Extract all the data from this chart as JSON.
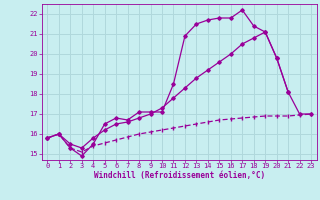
{
  "bg_color": "#c8eef0",
  "grid_color": "#b0d8dc",
  "line_color": "#990099",
  "marker_color": "#990099",
  "xlabel": "Windchill (Refroidissement éolien,°C)",
  "xlabel_color": "#990099",
  "tick_color": "#990099",
  "xlim": [
    -0.5,
    23.5
  ],
  "ylim": [
    14.7,
    22.5
  ],
  "yticks": [
    15,
    16,
    17,
    18,
    19,
    20,
    21,
    22
  ],
  "xticks": [
    0,
    1,
    2,
    3,
    4,
    5,
    6,
    7,
    8,
    9,
    10,
    11,
    12,
    13,
    14,
    15,
    16,
    17,
    18,
    19,
    20,
    21,
    22,
    23
  ],
  "series1_x": [
    0,
    1,
    2,
    3,
    4,
    5,
    6,
    7,
    8,
    9,
    10,
    11,
    12,
    13,
    14,
    15,
    16,
    17,
    18,
    19,
    20,
    21,
    22,
    23
  ],
  "series1_y": [
    15.8,
    16.0,
    15.3,
    14.9,
    15.5,
    16.5,
    16.8,
    16.7,
    17.1,
    17.1,
    17.1,
    18.5,
    20.9,
    21.5,
    21.7,
    21.8,
    21.8,
    22.2,
    21.4,
    21.1,
    19.8,
    18.1,
    17.0,
    17.0
  ],
  "series2_x": [
    0,
    1,
    2,
    3,
    4,
    5,
    6,
    7,
    8,
    9,
    10,
    11,
    12,
    13,
    14,
    15,
    16,
    17,
    18,
    19,
    20,
    21
  ],
  "series2_y": [
    15.8,
    16.0,
    15.5,
    15.3,
    15.8,
    16.2,
    16.5,
    16.6,
    16.8,
    17.0,
    17.3,
    17.8,
    18.3,
    18.8,
    19.2,
    19.6,
    20.0,
    20.5,
    20.8,
    21.1,
    19.8,
    18.1
  ],
  "series3_x": [
    0,
    1,
    2,
    3,
    4,
    5,
    6,
    7,
    8,
    9,
    10,
    11,
    12,
    13,
    14,
    15,
    16,
    17,
    18,
    19,
    20,
    21,
    22,
    23
  ],
  "series3_y": [
    15.8,
    16.0,
    15.3,
    15.1,
    15.4,
    15.55,
    15.7,
    15.85,
    16.0,
    16.1,
    16.2,
    16.3,
    16.4,
    16.5,
    16.6,
    16.7,
    16.75,
    16.8,
    16.85,
    16.9,
    16.9,
    16.9,
    16.95,
    17.0
  ]
}
